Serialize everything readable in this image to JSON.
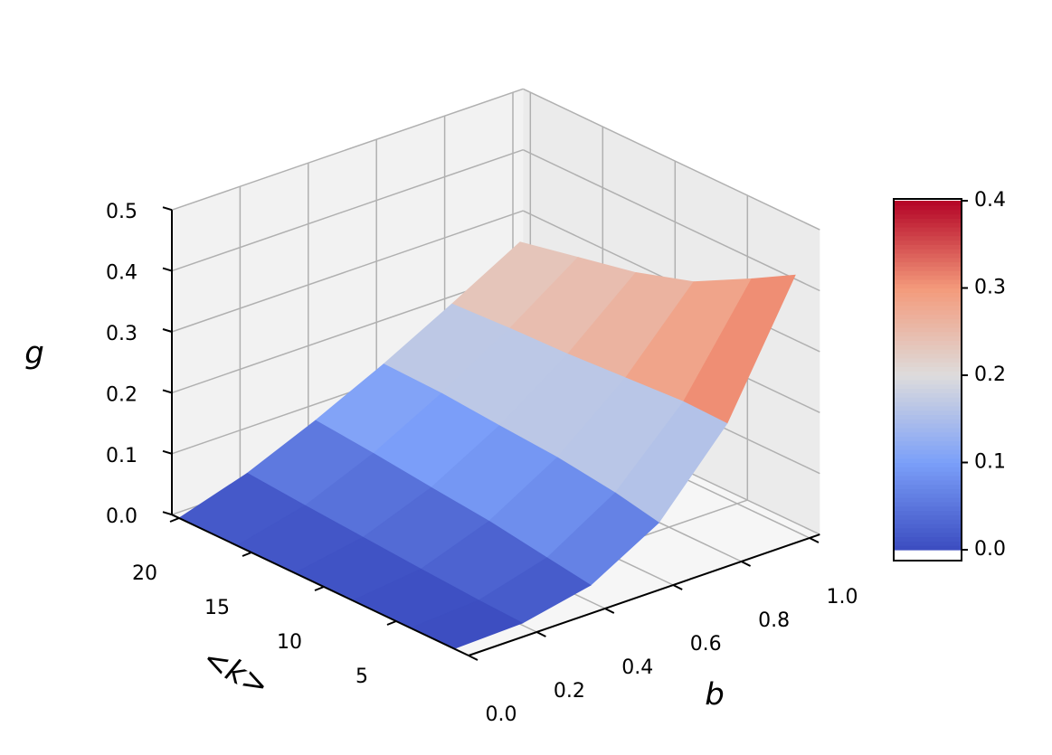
{
  "chart_data": {
    "type": "surface",
    "xlabel": "b",
    "ylabel": "<k>",
    "zlabel": "g",
    "x": [
      0,
      0.2,
      0.4,
      0.6,
      0.8,
      1.0
    ],
    "y": [
      1,
      4,
      8,
      12,
      16,
      20
    ],
    "z": [
      [
        0,
        0.0034,
        0.027,
        0.091,
        0.215,
        0.42
      ],
      [
        0,
        0.0068,
        0.038,
        0.106,
        0.217,
        0.38
      ],
      [
        0,
        0.013,
        0.053,
        0.119,
        0.211,
        0.33
      ],
      [
        0,
        0.02,
        0.063,
        0.126,
        0.205,
        0.3
      ],
      [
        0,
        0.027,
        0.074,
        0.134,
        0.202,
        0.28
      ],
      [
        0,
        0.035,
        0.083,
        0.137,
        0.197,
        0.26
      ]
    ],
    "xlim": [
      0,
      1.03
    ],
    "ylim": [
      0,
      20.5
    ],
    "zlim": [
      0,
      0.5
    ],
    "xticks": [
      {
        "value": 0,
        "label": "0.0"
      },
      0.2,
      0.4,
      0.6,
      0.8,
      {
        "value": 1,
        "label": "1.0"
      }
    ],
    "yticks": [
      5,
      10,
      15,
      20
    ],
    "zticks": [
      {
        "value": 0,
        "label": "0.0"
      },
      0.1,
      0.2,
      0.3,
      0.4,
      0.5
    ],
    "colorbar": {
      "lim": [
        0,
        0.4
      ],
      "ticks": [
        {
          "value": 0,
          "label": "0.0"
        },
        0.1,
        0.2,
        0.3,
        0.4
      ]
    },
    "colormap": [
      "#3b4cc0",
      "#7b9ff9",
      "#dddcdc",
      "#f49a7b",
      "#b40426"
    ],
    "grid": true
  }
}
